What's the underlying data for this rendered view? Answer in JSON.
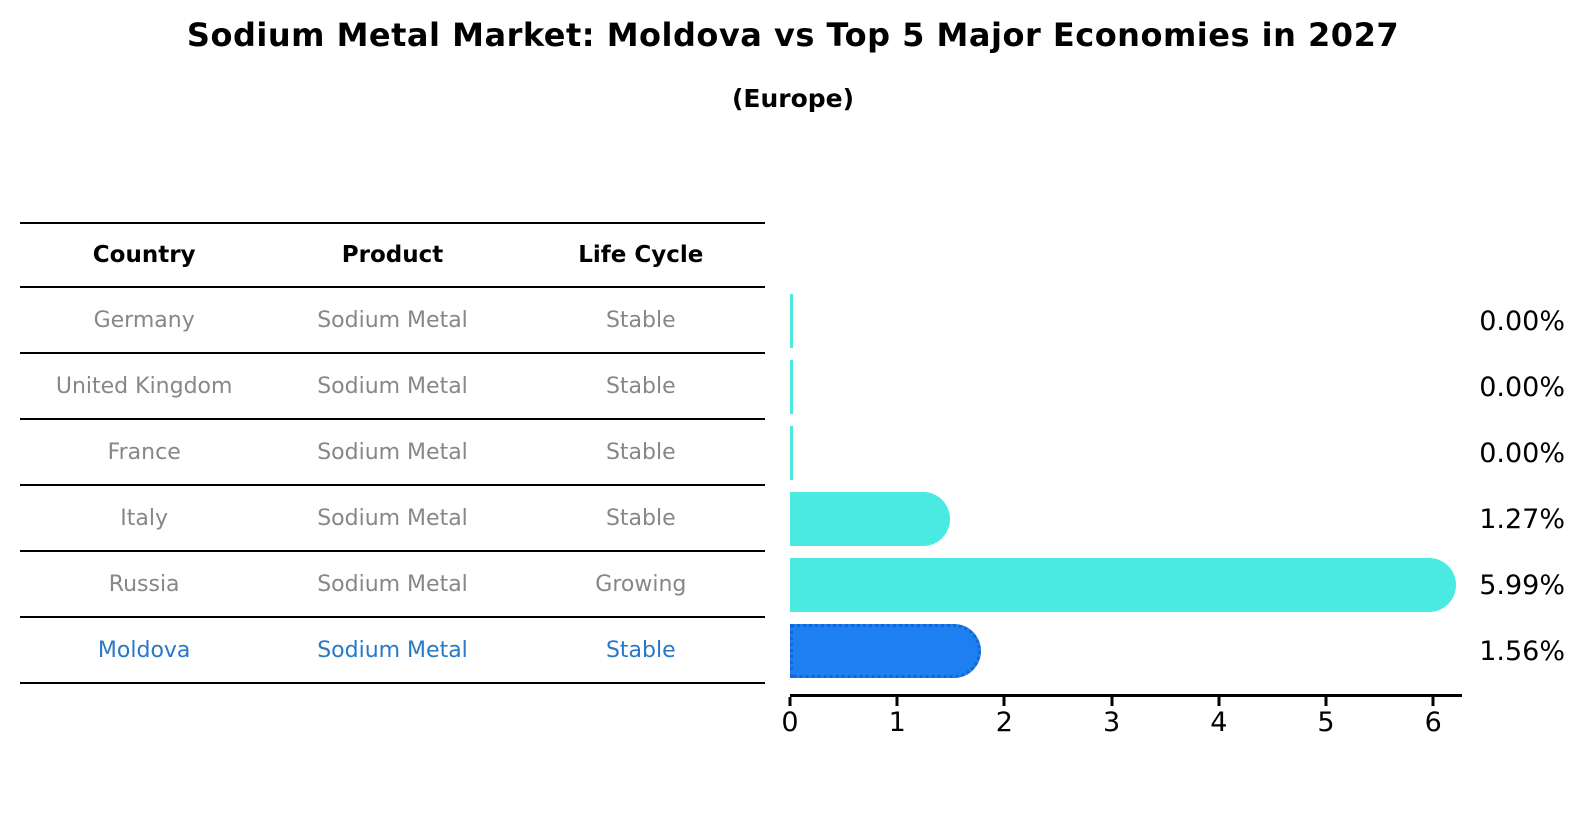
{
  "chart_data": {
    "type": "bar",
    "orientation": "horizontal",
    "title": "Sodium Metal Market: Moldova vs Top 5 Major Economies in 2027",
    "subtitle": "(Europe)",
    "categories": [
      "Germany",
      "United Kingdom",
      "France",
      "Italy",
      "Russia",
      "Moldova"
    ],
    "values": [
      0.0,
      0.0,
      0.0,
      1.27,
      5.99,
      1.56
    ],
    "value_labels": [
      "0.00%",
      "0.00%",
      "0.00%",
      "1.27%",
      "5.99%",
      "1.56%"
    ],
    "x_ticks": [
      0,
      1,
      2,
      3,
      4,
      5,
      6
    ],
    "xlim": [
      0,
      6.25
    ],
    "xlabel": "",
    "ylabel": "",
    "grid": false,
    "legend": false,
    "bar_color": "#4AEAE3",
    "highlight_index": 5,
    "highlight_color": "#1E80F0",
    "highlight_border_color": "#1565D2",
    "value_label_position": "right"
  },
  "table": {
    "headers": [
      "Country",
      "Product",
      "Life Cycle"
    ],
    "rows": [
      {
        "country": "Germany",
        "product": "Sodium Metal",
        "life_cycle": "Stable"
      },
      {
        "country": "United Kingdom",
        "product": "Sodium Metal",
        "life_cycle": "Stable"
      },
      {
        "country": "France",
        "product": "Sodium Metal",
        "life_cycle": "Stable"
      },
      {
        "country": "Italy",
        "product": "Sodium Metal",
        "life_cycle": "Stable"
      },
      {
        "country": "Russia",
        "product": "Sodium Metal",
        "life_cycle": "Growing"
      },
      {
        "country": "Moldova",
        "product": "Sodium Metal",
        "life_cycle": "Stable"
      }
    ],
    "row_text_color": "#878787",
    "highlight_text_color": "#2878C8"
  }
}
